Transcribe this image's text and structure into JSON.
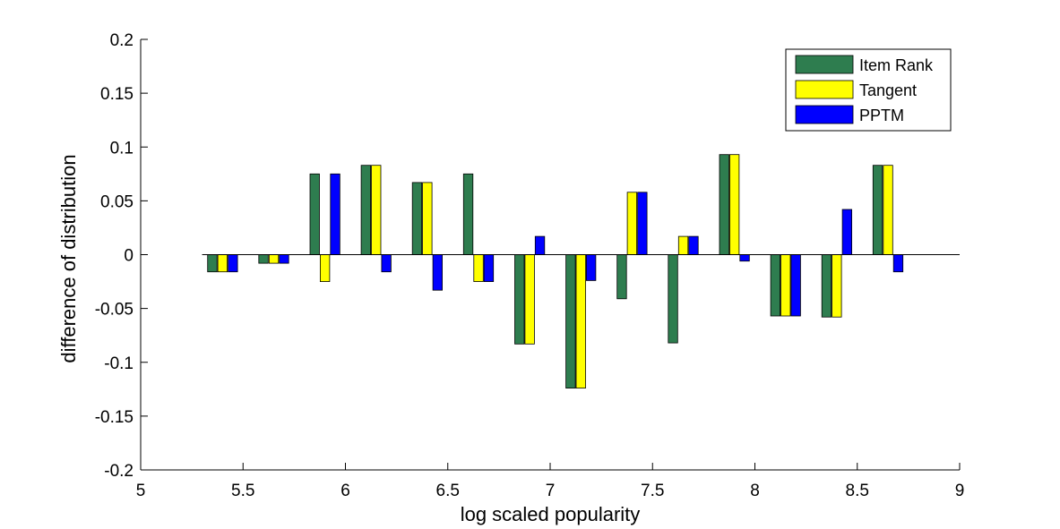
{
  "chart_data": {
    "type": "bar",
    "title": "",
    "xlabel": "log scaled popularity",
    "ylabel": "difference of distribution",
    "xlim": [
      5,
      9
    ],
    "ylim": [
      -0.2,
      0.2
    ],
    "x_ticks": [
      "5",
      "5.5",
      "6",
      "6.5",
      "7",
      "7.5",
      "8",
      "8.5",
      "9"
    ],
    "y_ticks": [
      "-0.2",
      "-0.15",
      "-0.1",
      "-0.05",
      "0",
      "0.05",
      "0.1",
      "0.15",
      "0.2"
    ],
    "grid": false,
    "legend_position": "top-right",
    "bar_width": 0.05,
    "x": [
      5.4,
      5.65,
      5.9,
      6.15,
      6.4,
      6.65,
      6.9,
      7.15,
      7.4,
      7.65,
      7.9,
      8.15,
      8.4,
      8.65
    ],
    "series": [
      {
        "name": "Item Rank",
        "color": "#2e7d4f",
        "values": [
          -0.016,
          -0.008,
          0.075,
          0.083,
          0.067,
          0.075,
          -0.083,
          -0.124,
          -0.041,
          -0.082,
          0.093,
          -0.057,
          -0.058,
          0.083
        ]
      },
      {
        "name": "Tangent",
        "color": "#ffff00",
        "values": [
          -0.016,
          -0.008,
          -0.025,
          0.083,
          0.067,
          -0.025,
          -0.083,
          -0.124,
          0.058,
          0.017,
          0.093,
          -0.057,
          -0.058,
          0.083
        ]
      },
      {
        "name": "PPTM",
        "color": "#0000ff",
        "values": [
          -0.016,
          -0.008,
          0.075,
          -0.016,
          -0.033,
          -0.025,
          0.017,
          -0.024,
          0.058,
          0.017,
          -0.006,
          -0.057,
          0.042,
          -0.016
        ]
      }
    ]
  }
}
